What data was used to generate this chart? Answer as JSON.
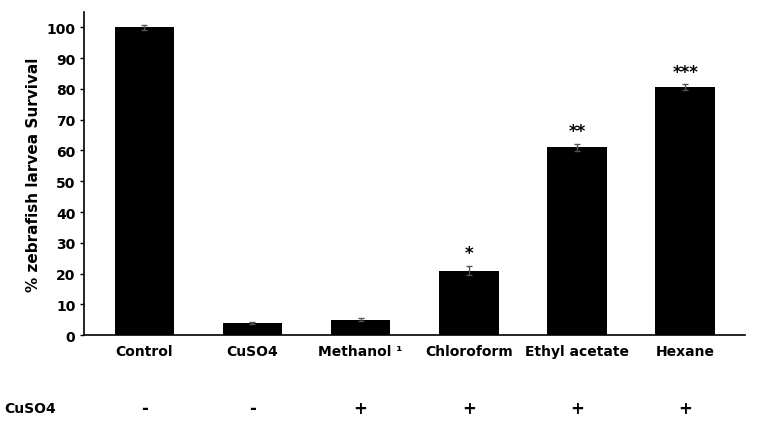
{
  "categories": [
    "Control",
    "CuSO4",
    "Methanol ¹",
    "Chloroform",
    "Ethyl acetate",
    "Hexane"
  ],
  "values": [
    100,
    4,
    5,
    21,
    61,
    80.5
  ],
  "errors": [
    0.8,
    0.4,
    0.5,
    1.5,
    1.2,
    1.0
  ],
  "bar_color": "#000000",
  "background_color": "#ffffff",
  "ylabel": "% zebrafish larvea Survival",
  "ylim": [
    0,
    105
  ],
  "yticks": [
    0,
    10,
    20,
    30,
    40,
    50,
    60,
    70,
    80,
    90,
    100
  ],
  "significance": [
    "",
    "",
    "",
    "*",
    "**",
    "***"
  ],
  "cuso4_row_label": "CuSO4",
  "cuso4_signs": [
    "-",
    "-",
    "+",
    "+",
    "+",
    "+"
  ],
  "tick_fontsize": 10,
  "label_fontsize": 11,
  "sig_fontsize": 12,
  "bar_width": 0.55
}
